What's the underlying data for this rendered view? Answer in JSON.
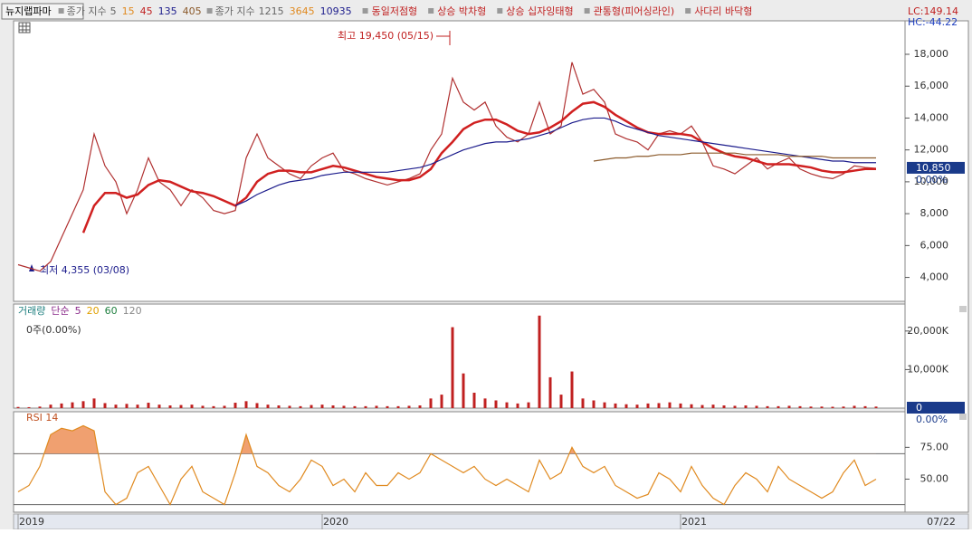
{
  "header": {
    "stock": "뉴지랩파마",
    "ma_set_1": {
      "label": "종가 지수",
      "periods": [
        5,
        15,
        45,
        135,
        405
      ]
    },
    "ma_set_2": {
      "label": "종가 지수",
      "periods": [
        1215,
        3645,
        10935
      ]
    },
    "patterns": [
      "동일저점형",
      "상승 박차형",
      "상승 십자잉태형",
      "관통형(피어싱라인)",
      "사다리 바닥형"
    ],
    "lc": "LC:149.14",
    "hc": "HC:-44.22"
  },
  "chart_data": [
    {
      "type": "line",
      "categories": [
        "2019",
        null,
        null,
        null,
        null,
        null,
        null,
        null,
        null,
        null,
        null,
        null,
        null,
        null,
        null,
        null,
        null,
        null,
        null,
        null,
        null,
        null,
        null,
        null,
        null,
        null,
        null,
        null,
        "2020",
        null,
        null,
        null,
        null,
        null,
        null,
        null,
        null,
        null,
        null,
        null,
        null,
        null,
        null,
        null,
        null,
        null,
        null,
        null,
        null,
        null,
        null,
        null,
        null,
        null,
        null,
        null,
        null,
        null,
        null,
        null,
        null,
        "2021",
        null,
        null,
        null,
        null,
        null,
        null,
        null,
        null,
        null,
        null,
        null,
        null,
        null,
        null,
        null,
        null,
        null,
        null
      ],
      "series": [
        {
          "color": "#b03030",
          "values": [
            4800,
            4600,
            4400,
            5000,
            6500,
            8000,
            9500,
            13000,
            11000,
            10000,
            8000,
            9500,
            11500,
            10000,
            9500,
            8500,
            9500,
            9000,
            8200,
            8000,
            8200,
            11500,
            13000,
            11500,
            11000,
            10500,
            10200,
            11000,
            11500,
            11800,
            10700,
            10500,
            10200,
            10000,
            9800,
            10000,
            10200,
            10500,
            12000,
            13000,
            16500,
            15000,
            14500,
            15000,
            13500,
            12800,
            12500,
            13000,
            15000,
            13000,
            13500,
            17500,
            15500,
            15800,
            15000,
            13000,
            12700,
            12500,
            12000,
            13000,
            13200,
            13000,
            13500,
            12500,
            11000,
            10800,
            10500,
            11000,
            11500,
            10800,
            11200,
            11500,
            10800,
            10500,
            10300,
            10200,
            10500,
            11000,
            10900,
            10850
          ]
        },
        {
          "color": "#d02020",
          "values": [
            null,
            null,
            null,
            null,
            null,
            null,
            6800,
            8500,
            9300,
            9300,
            9000,
            9200,
            9800,
            10100,
            10000,
            9700,
            9400,
            9300,
            9100,
            8800,
            8500,
            9000,
            10000,
            10500,
            10700,
            10700,
            10600,
            10600,
            10800,
            11000,
            10900,
            10700,
            10500,
            10300,
            10200,
            10100,
            10100,
            10300,
            10800,
            11800,
            12500,
            13300,
            13700,
            13900,
            13900,
            13600,
            13200,
            13000,
            13100,
            13400,
            13800,
            14400,
            14900,
            15000,
            14700,
            14200,
            13800,
            13400,
            13100,
            13000,
            13000,
            13000,
            12900,
            12500,
            12100,
            11800,
            11600,
            11500,
            11300,
            11100,
            11100,
            11100,
            11000,
            10900,
            10700,
            10600,
            10600,
            10700,
            10800,
            10800
          ]
        },
        {
          "color": "#1c1c8c",
          "values": [
            null,
            null,
            null,
            null,
            null,
            null,
            null,
            null,
            null,
            null,
            null,
            null,
            null,
            null,
            null,
            null,
            null,
            null,
            null,
            null,
            8500,
            8800,
            9200,
            9500,
            9800,
            10000,
            10100,
            10200,
            10400,
            10500,
            10600,
            10600,
            10600,
            10600,
            10600,
            10700,
            10800,
            10900,
            11100,
            11400,
            11700,
            12000,
            12200,
            12400,
            12500,
            12500,
            12600,
            12700,
            12900,
            13100,
            13400,
            13700,
            13900,
            14000,
            14000,
            13800,
            13500,
            13300,
            13100,
            12900,
            12800,
            12700,
            12600,
            12500,
            12400,
            12300,
            12200,
            12100,
            12000,
            11900,
            11800,
            11700,
            11600,
            11500,
            11400,
            11300,
            11300,
            11200,
            11200,
            11200
          ]
        },
        {
          "color": "#8b5a2b",
          "values": [
            null,
            null,
            null,
            null,
            null,
            null,
            null,
            null,
            null,
            null,
            null,
            null,
            null,
            null,
            null,
            null,
            null,
            null,
            null,
            null,
            null,
            null,
            null,
            null,
            null,
            null,
            null,
            null,
            null,
            null,
            null,
            null,
            null,
            null,
            null,
            null,
            null,
            null,
            null,
            null,
            null,
            null,
            null,
            null,
            null,
            null,
            null,
            null,
            null,
            null,
            null,
            null,
            null,
            11300,
            11400,
            11500,
            11500,
            11600,
            11600,
            11700,
            11700,
            11700,
            11800,
            11800,
            11800,
            11800,
            11800,
            11700,
            11700,
            11700,
            11700,
            11600,
            11600,
            11600,
            11600,
            11500,
            11500,
            11500,
            11500,
            11500
          ]
        }
      ],
      "ylim": [
        2500,
        20100
      ],
      "yticks": [
        {
          "value": 4000,
          "label": "4,000"
        },
        {
          "value": 6000,
          "label": "6,000"
        },
        {
          "value": 8000,
          "label": "8,000"
        },
        {
          "value": 10000,
          "label": "10,000"
        },
        {
          "value": 12000,
          "label": "12,000"
        },
        {
          "value": 14000,
          "label": "14,000"
        },
        {
          "value": 16000,
          "label": "16,000"
        },
        {
          "value": 18000,
          "label": "18,000"
        }
      ],
      "annotations": [
        "최고 19,450 (05/15)",
        "최저 4,355 (03/08)"
      ],
      "last_value": {
        "value": 10850,
        "label": "10,850"
      },
      "change": "0.00%"
    },
    {
      "type": "bar",
      "indicator": {
        "name": "거래량",
        "method": "단순",
        "periods": [
          5,
          20,
          60,
          120
        ]
      },
      "subtitle": "0주(0.00%)",
      "series": [
        {
          "color": "#c02020",
          "values": [
            300,
            250,
            400,
            900,
            1200,
            1500,
            1800,
            2500,
            1300,
            900,
            1100,
            900,
            1400,
            900,
            700,
            800,
            900,
            600,
            500,
            600,
            1400,
            1800,
            1300,
            900,
            700,
            600,
            500,
            800,
            900,
            700,
            600,
            500,
            500,
            600,
            500,
            500,
            600,
            700,
            2500,
            3500,
            21000,
            9000,
            4000,
            2500,
            2000,
            1500,
            1200,
            1500,
            24000,
            8000,
            3500,
            9500,
            2500,
            2000,
            1500,
            1200,
            1000,
            900,
            1200,
            1300,
            1500,
            1200,
            1000,
            800,
            900,
            700,
            600,
            700,
            600,
            500,
            500,
            600,
            500,
            400,
            400,
            350,
            400,
            600,
            500,
            400
          ]
        }
      ],
      "ylim": [
        0,
        27000
      ],
      "yticks": [
        {
          "value": 10000,
          "label": "10,000K"
        },
        {
          "value": 20000,
          "label": "20,000K"
        }
      ],
      "last_value": 0,
      "change": "0.00%"
    },
    {
      "type": "line",
      "title": "RSI 14",
      "series": [
        {
          "color": "#e08a20",
          "values": [
            40,
            45,
            60,
            85,
            90,
            88,
            92,
            88,
            40,
            30,
            35,
            55,
            60,
            45,
            30,
            50,
            60,
            40,
            35,
            30,
            55,
            85,
            60,
            55,
            45,
            40,
            50,
            65,
            60,
            45,
            50,
            40,
            55,
            45,
            45,
            55,
            50,
            55,
            70,
            65,
            60,
            55,
            60,
            50,
            45,
            50,
            45,
            40,
            65,
            50,
            55,
            75,
            60,
            55,
            60,
            45,
            40,
            35,
            38,
            55,
            50,
            40,
            60,
            45,
            35,
            30,
            45,
            55,
            50,
            40,
            60,
            50,
            45,
            40,
            35,
            40,
            55,
            65,
            45,
            50
          ]
        }
      ],
      "ylim": [
        24,
        103
      ],
      "yticks": [
        {
          "value": 50,
          "label": "50.00"
        },
        {
          "value": 75,
          "label": "75.00"
        }
      ],
      "hlines": [
        70,
        30
      ],
      "fill_above": 70,
      "fill_color": "#f0a070"
    }
  ],
  "date_label": "07/22"
}
